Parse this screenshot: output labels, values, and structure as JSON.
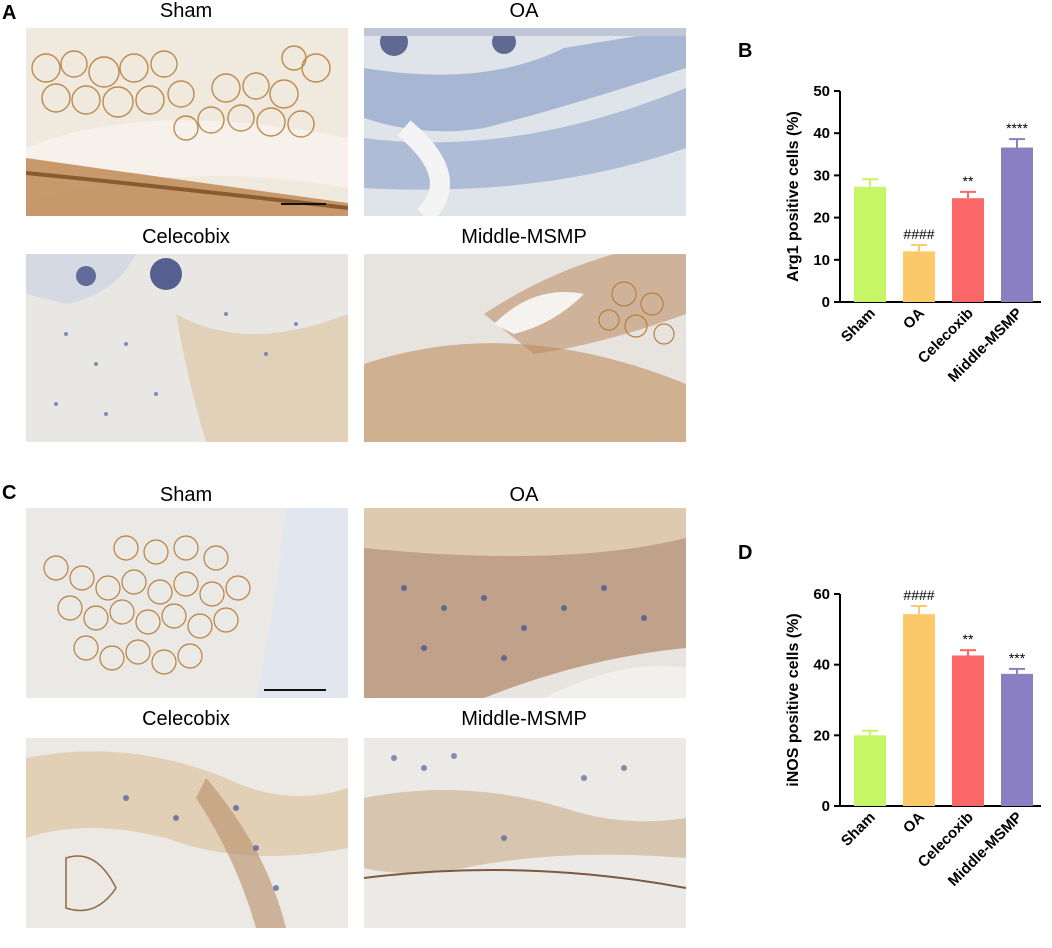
{
  "panels": {
    "a": {
      "letter": "A",
      "titles": [
        "Sham",
        "OA",
        "Celecobix",
        "Middle-MSMP"
      ]
    },
    "b": {
      "letter": "B"
    },
    "c": {
      "letter": "C",
      "titles": [
        "Sham",
        "OA",
        "Celecobix",
        "Middle-MSMP"
      ]
    },
    "d": {
      "letter": "D"
    }
  },
  "chart_data": [
    {
      "type": "bar",
      "categories": [
        "Sham",
        "OA",
        "Celecoxib",
        "Middle-MSMP"
      ],
      "values": [
        27.3,
        12.0,
        24.6,
        36.6
      ],
      "errors": [
        1.8,
        1.5,
        1.5,
        2.0
      ],
      "annotations": [
        "",
        "####",
        "**",
        "****"
      ],
      "colors": [
        "#c6f566",
        "#fcc96a",
        "#fb6767",
        "#8b7fc4"
      ],
      "ylabel": "Arg1 positive cells (%)",
      "ylim": [
        0,
        50
      ],
      "yticks": [
        0,
        10,
        20,
        30,
        40,
        50
      ]
    },
    {
      "type": "bar",
      "categories": [
        "Sham",
        "OA",
        "Celecoxib",
        "Middle-MSMP"
      ],
      "values": [
        20.0,
        54.3,
        42.6,
        37.4
      ],
      "errors": [
        1.3,
        2.3,
        1.5,
        1.4
      ],
      "annotations": [
        "",
        "####",
        "**",
        "***"
      ],
      "colors": [
        "#c6f566",
        "#fcc96a",
        "#fb6767",
        "#8b7fc4"
      ],
      "ylabel": "iNOS positive cells (%)",
      "ylim": [
        0,
        60
      ],
      "yticks": [
        0,
        20,
        40,
        60
      ]
    }
  ]
}
